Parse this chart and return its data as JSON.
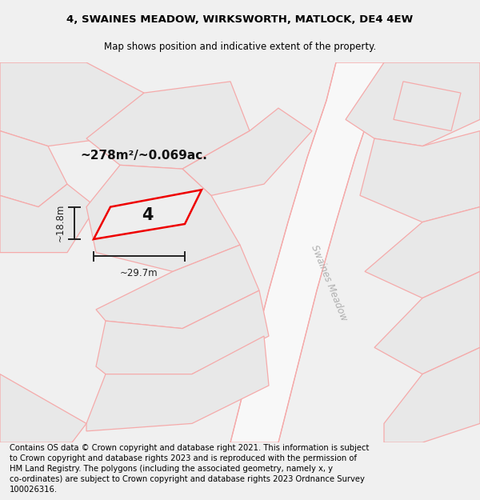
{
  "title_line1": "4, SWAINES MEADOW, WIRKSWORTH, MATLOCK, DE4 4EW",
  "title_line2": "Map shows position and indicative extent of the property.",
  "footer_text": "Contains OS data © Crown copyright and database right 2021. This information is subject to Crown copyright and database rights 2023 and is reproduced with the permission of HM Land Registry. The polygons (including the associated geometry, namely x, y co-ordinates) are subject to Crown copyright and database rights 2023 Ordnance Survey 100026316.",
  "area_label": "~278m²/~0.069ac.",
  "width_label": "~29.7m",
  "height_label": "~18.8m",
  "plot_number": "4",
  "road_label": "Swaines Meadow",
  "parcel_fill": "#e8e8e8",
  "parcel_edge": "#f5aaaa",
  "red_outline": "#ee0000",
  "dim_color": "#222222",
  "road_label_color": "#b0b0b0",
  "map_bg": "#f8f8f8",
  "header_bg": "#f0f0f0",
  "footer_bg": "#f0f0f0"
}
